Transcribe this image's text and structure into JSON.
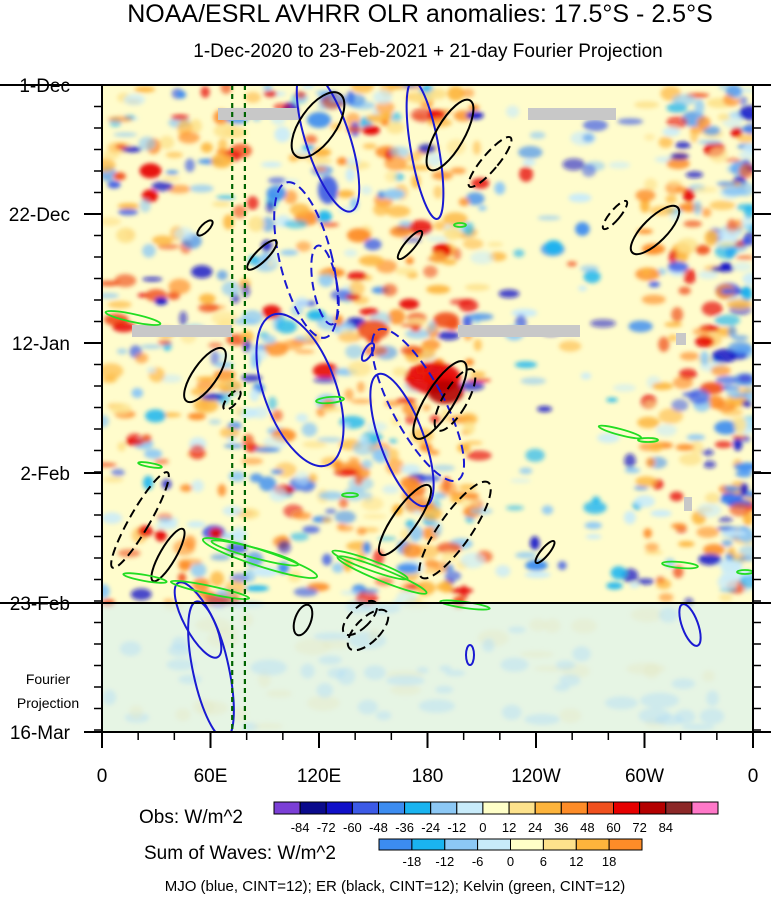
{
  "chart_data": {
    "type": "heatmap",
    "title": "NOAA/ESRL AVHRR OLR anomalies: 17.5°S - 2.5°S",
    "subtitle": "1-Dec-2020 to 23-Feb-2021 + 21-day Fourier Projection",
    "x_ticks": [
      "0",
      "60E",
      "120E",
      "180",
      "120W",
      "60W",
      "0"
    ],
    "y_ticks": [
      "1-Dec",
      "22-Dec",
      "12-Jan",
      "2-Feb",
      "23-Feb",
      "16-Mar"
    ],
    "projection_label_line1": "Fourier",
    "projection_label_line2": "Projection",
    "obs_legend": {
      "label": "Obs: W/m^2",
      "levels": [
        "-84",
        "-72",
        "-60",
        "-48",
        "-36",
        "-24",
        "-12",
        "0",
        "12",
        "24",
        "36",
        "48",
        "60",
        "72",
        "84"
      ],
      "colors": [
        "#7b3fd6",
        "#0a0a8c",
        "#1010c8",
        "#3c5ae6",
        "#3c8cf0",
        "#1ab4f0",
        "#8cc8f5",
        "#c8ebfa",
        "#ffffc8",
        "#fde28c",
        "#fdb43c",
        "#fd8c28",
        "#f0501e",
        "#e60000",
        "#b40000",
        "#8c2828",
        "#ff78c8"
      ]
    },
    "waves_legend": {
      "label": "Sum of Waves: W/m^2",
      "levels": [
        "-18",
        "-12",
        "-6",
        "0",
        "6",
        "12",
        "18"
      ],
      "colors": [
        "#3c8cf0",
        "#1ab4f0",
        "#8cc8f5",
        "#c8ebfa",
        "#ffffc8",
        "#fde28c",
        "#fdb43c",
        "#fd8c28"
      ]
    },
    "footnote": "MJO (blue, CINT=12); ER (black, CINT=12); Kelvin (green, CINT=12)",
    "dashed_reference_lines_lon": [
      72,
      79
    ],
    "observed_end": "23-Feb",
    "wave_overlays": {
      "mjo_color": "#1a1ad2",
      "er_color": "#000000",
      "kelvin_color": "#22dd22"
    }
  }
}
